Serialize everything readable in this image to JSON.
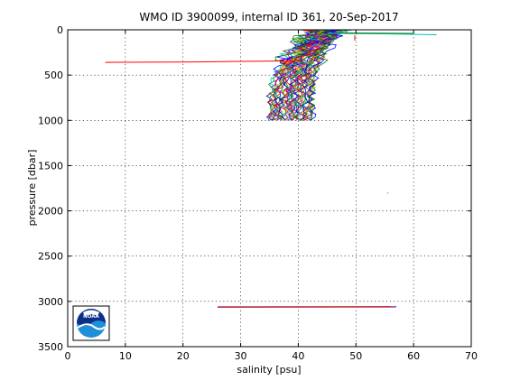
{
  "chart_data": {
    "type": "line",
    "title": "WMO ID 3900099, internal ID 361, 20-Sep-2017",
    "xlabel": "salinity [psu]",
    "ylabel": "pressure [dbar]",
    "xlim": [
      0,
      70
    ],
    "ylim": [
      0,
      3500
    ],
    "y_reversed": true,
    "grid": true,
    "xticks": [
      0,
      10,
      20,
      30,
      40,
      50,
      60,
      70
    ],
    "yticks": [
      0,
      500,
      1000,
      1500,
      2000,
      2500,
      3000,
      3500
    ],
    "logo_text": "NOAA",
    "profile_bundle": {
      "count": 44,
      "x_start_range": [
        35.0,
        42.5
      ],
      "x_spread_to": 49.0,
      "p_top": 0,
      "p_bottom": 1000,
      "colors": [
        "#0000ff",
        "#007f00",
        "#ff0000",
        "#00bfbf",
        "#bf00bf",
        "#bfbf00",
        "#3f3f3f"
      ]
    },
    "series": [
      {
        "color": "#ff0000",
        "points": [
          [
            6.5,
            360
          ],
          [
            22,
            355
          ],
          [
            36,
            345
          ],
          [
            40,
            340
          ]
        ]
      },
      {
        "color": "#007f00",
        "points": [
          [
            26,
            3060
          ],
          [
            56,
            3058
          ]
        ]
      },
      {
        "color": "#0000ff",
        "points": [
          [
            26,
            3062
          ],
          [
            57,
            3060
          ]
        ]
      },
      {
        "color": "#ff0000",
        "points": [
          [
            26,
            3064
          ],
          [
            56.5,
            3062
          ]
        ]
      },
      {
        "color": "#00bfbf",
        "points": [
          [
            45,
            40
          ],
          [
            55,
            45
          ],
          [
            64,
            55
          ]
        ]
      },
      {
        "color": "#007f00",
        "points": [
          [
            47,
            35
          ],
          [
            54,
            38
          ],
          [
            60,
            40
          ]
        ]
      },
      {
        "color": "#ff0000",
        "points": [
          [
            49.8,
            60
          ],
          [
            49.8,
            120
          ]
        ]
      },
      {
        "color": "#ff0000",
        "points": [
          [
            55.5,
            1800
          ],
          [
            55.6,
            1808
          ]
        ]
      }
    ]
  }
}
